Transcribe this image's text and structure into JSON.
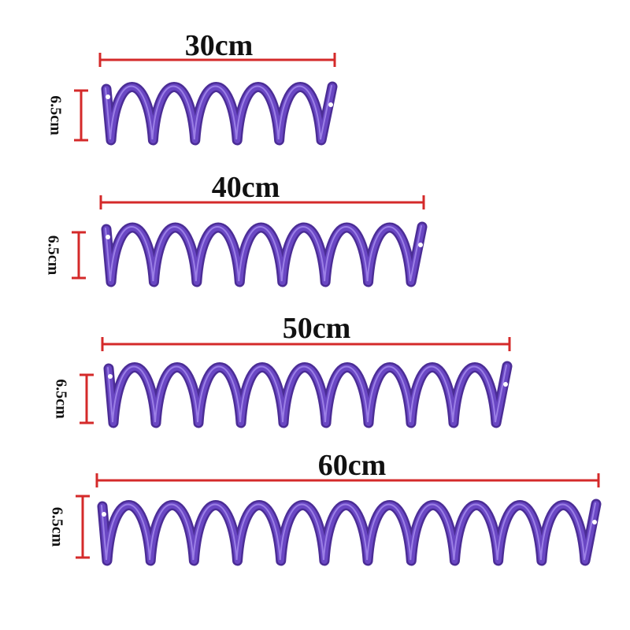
{
  "items": [
    {
      "length": "30cm",
      "height": "6.5cm"
    },
    {
      "length": "40cm",
      "height": "6.5cm"
    },
    {
      "length": "50cm",
      "height": "6.5cm"
    },
    {
      "length": "60cm",
      "height": "6.5cm"
    }
  ]
}
